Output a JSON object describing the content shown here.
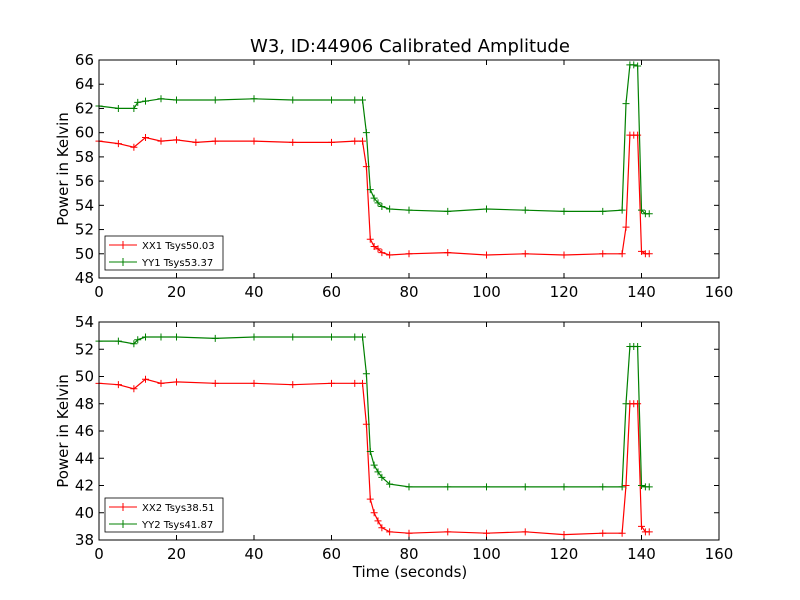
{
  "chart_data": [
    {
      "type": "line",
      "title": "W3, ID:44906 Calibrated Amplitude",
      "xlabel": "",
      "ylabel": "Power in Kelvin",
      "xlim": [
        0,
        160
      ],
      "ylim": [
        48,
        66
      ],
      "xticks": [
        "0",
        "20",
        "40",
        "60",
        "80",
        "100",
        "120",
        "140",
        "160"
      ],
      "yticks": [
        "48",
        "50",
        "52",
        "54",
        "56",
        "58",
        "60",
        "62",
        "64",
        "66"
      ],
      "legend_position": "lower-left",
      "series": [
        {
          "name": "XX1 Tsys50.03",
          "color": "#ff0000",
          "x": [
            0,
            5,
            9,
            12,
            16,
            20,
            25,
            30,
            40,
            50,
            60,
            66,
            68,
            69,
            70,
            71,
            72,
            73,
            75,
            80,
            90,
            100,
            110,
            120,
            130,
            135,
            136,
            137,
            138,
            139,
            140,
            141,
            142
          ],
          "y": [
            59.3,
            59.1,
            58.8,
            59.6,
            59.3,
            59.4,
            59.2,
            59.3,
            59.3,
            59.2,
            59.2,
            59.3,
            59.3,
            57.2,
            51.2,
            50.6,
            50.4,
            50.1,
            49.9,
            50.0,
            50.1,
            49.9,
            50.0,
            49.9,
            50.0,
            50.0,
            52.2,
            59.8,
            59.8,
            59.8,
            50.2,
            50.0,
            50.0
          ]
        },
        {
          "name": "YY1 Tsys53.37",
          "color": "#008000",
          "x": [
            0,
            5,
            9,
            10,
            12,
            16,
            20,
            30,
            40,
            50,
            60,
            66,
            68,
            69,
            70,
            71,
            72,
            73,
            75,
            80,
            90,
            100,
            110,
            120,
            130,
            135,
            136,
            137,
            138,
            139,
            140,
            141,
            142
          ],
          "y": [
            62.2,
            62.0,
            62.0,
            62.5,
            62.6,
            62.8,
            62.7,
            62.7,
            62.8,
            62.7,
            62.7,
            62.7,
            62.7,
            60.0,
            55.3,
            54.6,
            54.2,
            53.9,
            53.7,
            53.6,
            53.5,
            53.7,
            53.6,
            53.5,
            53.5,
            53.6,
            62.4,
            65.6,
            65.6,
            65.5,
            53.6,
            53.3,
            53.3
          ]
        }
      ]
    },
    {
      "type": "line",
      "title": "",
      "xlabel": "Time (seconds)",
      "ylabel": "Power in Kelvin",
      "xlim": [
        0,
        160
      ],
      "ylim": [
        38,
        54
      ],
      "xticks": [
        "0",
        "20",
        "40",
        "60",
        "80",
        "100",
        "120",
        "140",
        "160"
      ],
      "yticks": [
        "38",
        "40",
        "42",
        "44",
        "46",
        "48",
        "50",
        "52",
        "54"
      ],
      "legend_position": "lower-left",
      "series": [
        {
          "name": "XX2 Tsys38.51",
          "color": "#ff0000",
          "x": [
            0,
            5,
            9,
            12,
            16,
            20,
            30,
            40,
            50,
            60,
            66,
            68,
            69,
            70,
            71,
            72,
            73,
            75,
            80,
            90,
            100,
            110,
            120,
            130,
            135,
            136,
            137,
            138,
            139,
            140,
            141,
            142
          ],
          "y": [
            49.5,
            49.4,
            49.1,
            49.8,
            49.5,
            49.6,
            49.5,
            49.5,
            49.4,
            49.5,
            49.5,
            49.5,
            46.5,
            41.0,
            40.0,
            39.4,
            38.9,
            38.6,
            38.5,
            38.6,
            38.5,
            38.6,
            38.4,
            38.5,
            38.5,
            42.0,
            48.0,
            48.0,
            48.0,
            39.0,
            38.6,
            38.6
          ]
        },
        {
          "name": "YY2 Tsys41.87",
          "color": "#008000",
          "x": [
            0,
            5,
            9,
            10,
            12,
            16,
            20,
            30,
            40,
            50,
            60,
            66,
            68,
            69,
            70,
            71,
            72,
            73,
            75,
            80,
            90,
            100,
            110,
            120,
            130,
            135,
            136,
            137,
            138,
            139,
            140,
            141,
            142
          ],
          "y": [
            52.6,
            52.6,
            52.4,
            52.7,
            52.9,
            52.9,
            52.9,
            52.8,
            52.9,
            52.9,
            52.9,
            52.9,
            52.9,
            50.2,
            44.5,
            43.5,
            43.0,
            42.6,
            42.1,
            41.9,
            41.9,
            41.9,
            41.9,
            41.9,
            41.9,
            41.9,
            48.0,
            52.2,
            52.2,
            52.2,
            42.0,
            41.9,
            41.9
          ]
        }
      ]
    }
  ]
}
